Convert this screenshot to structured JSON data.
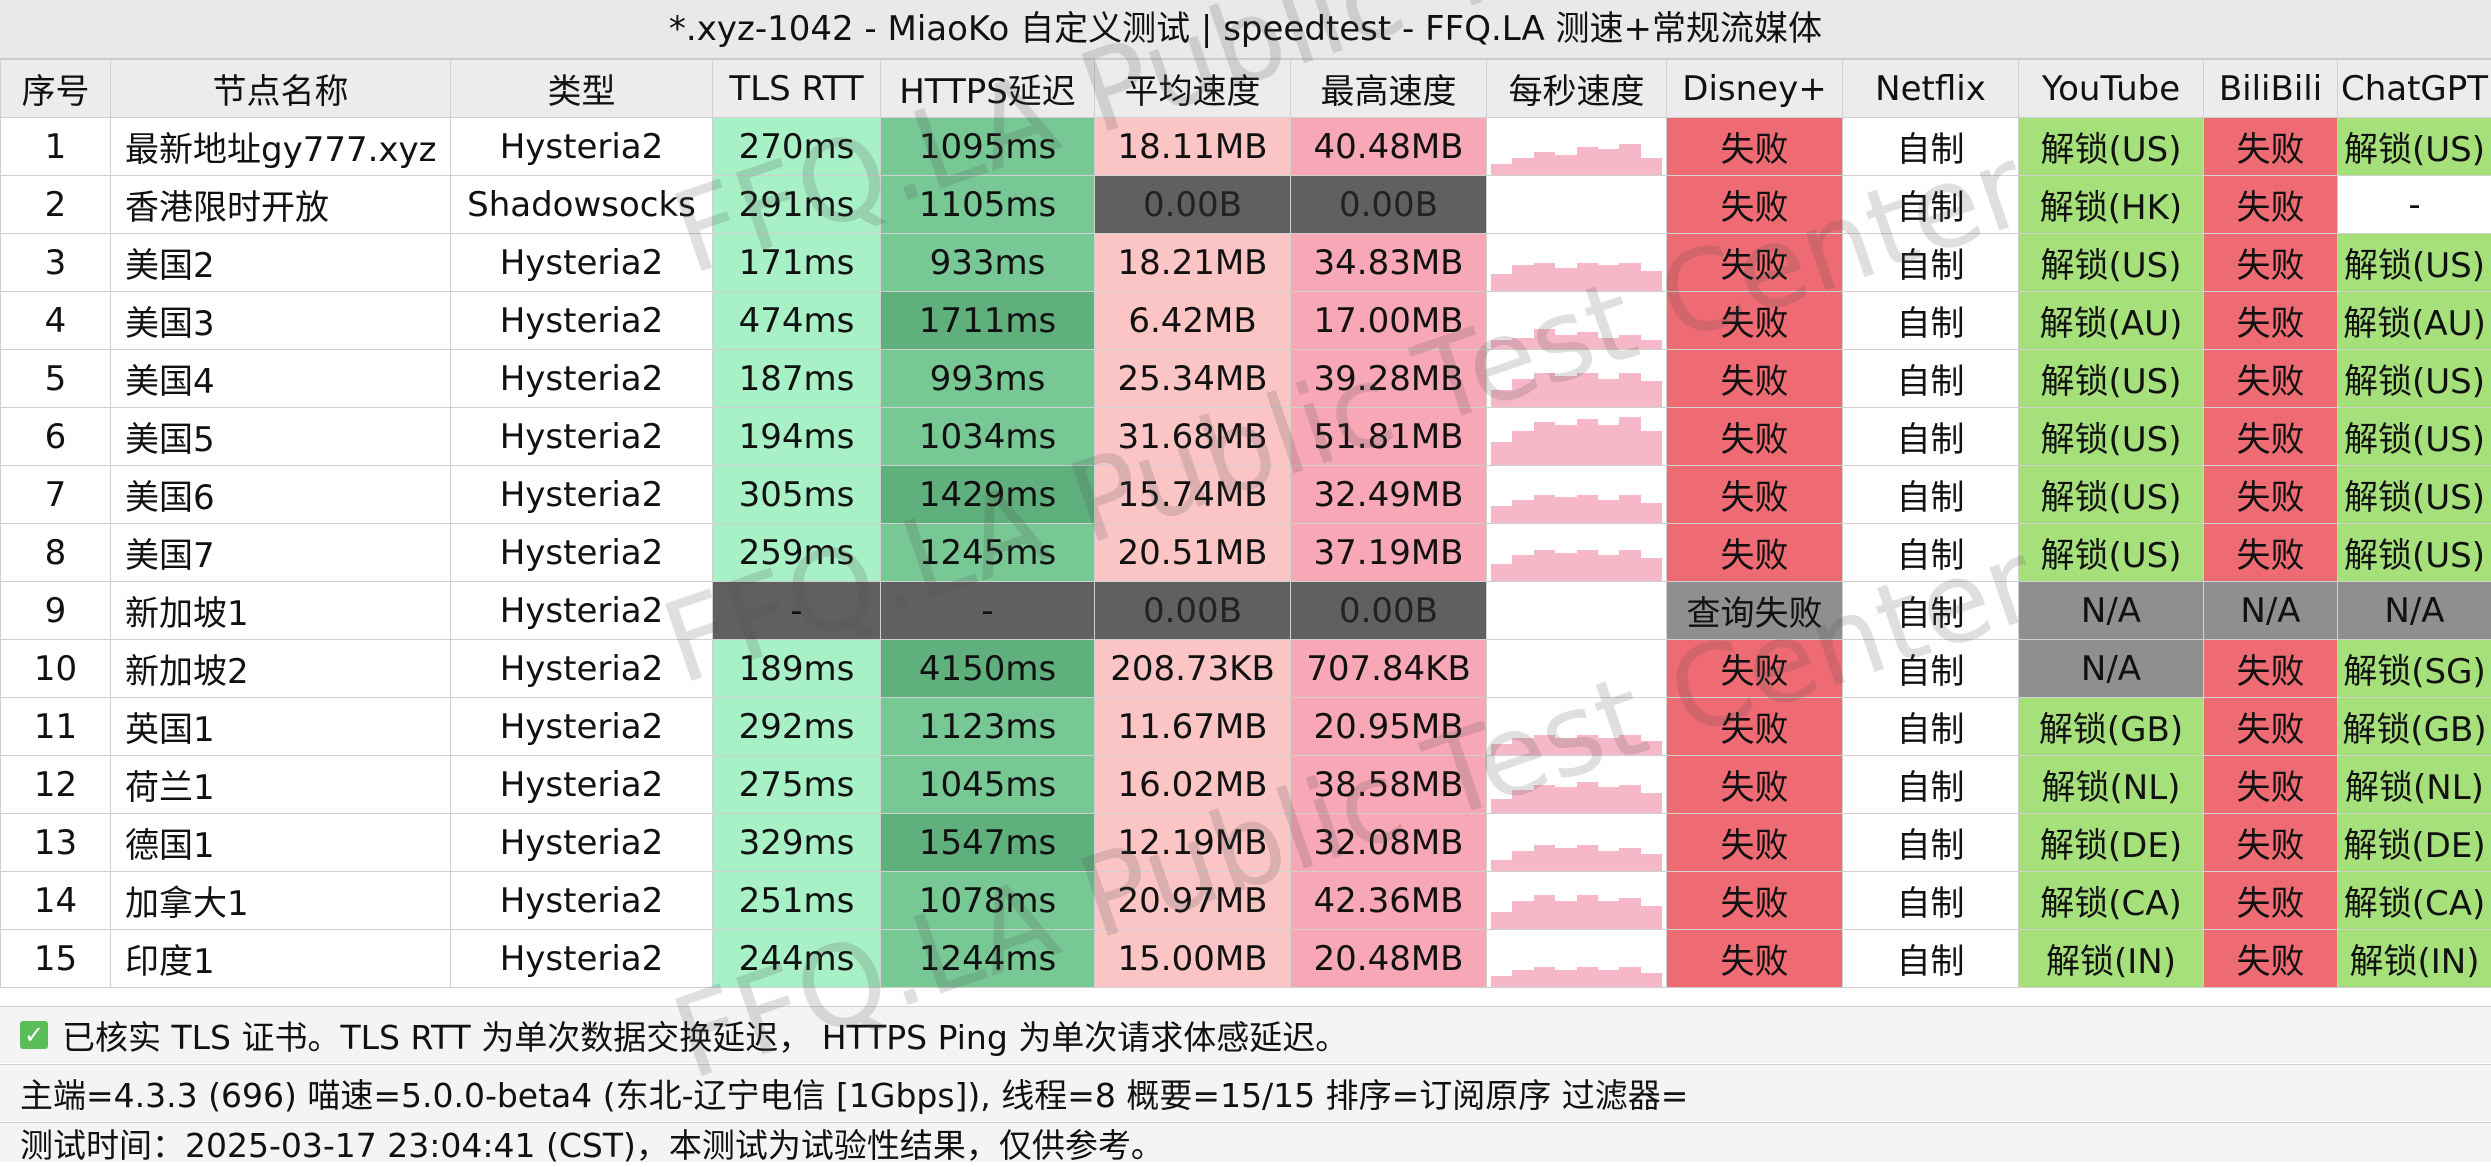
{
  "title": "*.xyz-1042 - MiaoKo 自定义测试 | speedtest - FFQ.LA 测速+常规流媒体",
  "columns": [
    "序号",
    "节点名称",
    "类型",
    "TLS RTT",
    "HTTPS延迟",
    "平均速度",
    "最高速度",
    "每秒速度",
    "Disney+",
    "Netflix",
    "YouTube",
    "BiliBili",
    "ChatGPT"
  ],
  "rows": [
    {
      "id": "1",
      "name": "最新地址gy777.xyz",
      "type": "Hysteria2",
      "tls": "270ms",
      "https": "1095ms",
      "avg": "18.11MB",
      "max": "40.48MB",
      "spark": [
        0.2,
        0.3,
        0.4,
        0.35,
        0.5,
        0.45,
        0.55,
        0.3
      ],
      "disney": "失败",
      "netflix": "自制",
      "youtube": "解锁(US)",
      "bili": "失败",
      "chatgpt": "解锁(US)"
    },
    {
      "id": "2",
      "name": "香港限时开放",
      "type": "Shadowsocks",
      "tls": "291ms",
      "https": "1105ms",
      "avg": "0.00B",
      "max": "0.00B",
      "spark": [],
      "disney": "失败",
      "netflix": "自制",
      "youtube": "解锁(HK)",
      "bili": "失败",
      "chatgpt": "-"
    },
    {
      "id": "3",
      "name": "美国2",
      "type": "Hysteria2",
      "tls": "171ms",
      "https": "933ms",
      "avg": "18.21MB",
      "max": "34.83MB",
      "spark": [
        0.3,
        0.45,
        0.5,
        0.4,
        0.5,
        0.45,
        0.5,
        0.35
      ],
      "disney": "失败",
      "netflix": "自制",
      "youtube": "解锁(US)",
      "bili": "失败",
      "chatgpt": "解锁(US)"
    },
    {
      "id": "4",
      "name": "美国3",
      "type": "Hysteria2",
      "tls": "474ms",
      "https": "1711ms",
      "avg": "6.42MB",
      "max": "17.00MB",
      "spark": [
        0.15,
        0.2,
        0.35,
        0.25,
        0.3,
        0.2,
        0.25,
        0.15
      ],
      "disney": "失败",
      "netflix": "自制",
      "youtube": "解锁(AU)",
      "bili": "失败",
      "chatgpt": "解锁(AU)"
    },
    {
      "id": "5",
      "name": "美国4",
      "type": "Hysteria2",
      "tls": "187ms",
      "https": "993ms",
      "avg": "25.34MB",
      "max": "39.28MB",
      "spark": [
        0.3,
        0.5,
        0.6,
        0.55,
        0.6,
        0.5,
        0.6,
        0.45
      ],
      "disney": "失败",
      "netflix": "自制",
      "youtube": "解锁(US)",
      "bili": "失败",
      "chatgpt": "解锁(US)"
    },
    {
      "id": "6",
      "name": "美国5",
      "type": "Hysteria2",
      "tls": "194ms",
      "https": "1034ms",
      "avg": "31.68MB",
      "max": "51.81MB",
      "spark": [
        0.4,
        0.6,
        0.75,
        0.7,
        0.8,
        0.7,
        0.85,
        0.6
      ],
      "disney": "失败",
      "netflix": "自制",
      "youtube": "解锁(US)",
      "bili": "失败",
      "chatgpt": "解锁(US)"
    },
    {
      "id": "7",
      "name": "美国6",
      "type": "Hysteria2",
      "tls": "305ms",
      "https": "1429ms",
      "avg": "15.74MB",
      "max": "32.49MB",
      "spark": [
        0.3,
        0.4,
        0.5,
        0.45,
        0.5,
        0.4,
        0.5,
        0.35
      ],
      "disney": "失败",
      "netflix": "自制",
      "youtube": "解锁(US)",
      "bili": "失败",
      "chatgpt": "解锁(US)"
    },
    {
      "id": "8",
      "name": "美国7",
      "type": "Hysteria2",
      "tls": "259ms",
      "https": "1245ms",
      "avg": "20.51MB",
      "max": "37.19MB",
      "spark": [
        0.3,
        0.45,
        0.55,
        0.5,
        0.55,
        0.45,
        0.55,
        0.4
      ],
      "disney": "失败",
      "netflix": "自制",
      "youtube": "解锁(US)",
      "bili": "失败",
      "chatgpt": "解锁(US)"
    },
    {
      "id": "9",
      "name": "新加坡1",
      "type": "Hysteria2",
      "tls": "-",
      "https": "-",
      "avg": "0.00B",
      "max": "0.00B",
      "spark": [],
      "disney": "查询失败",
      "netflix": "自制",
      "youtube": "N/A",
      "bili": "N/A",
      "chatgpt": "N/A"
    },
    {
      "id": "10",
      "name": "新加坡2",
      "type": "Hysteria2",
      "tls": "189ms",
      "https": "4150ms",
      "avg": "208.73KB",
      "max": "707.84KB",
      "spark": [],
      "disney": "失败",
      "netflix": "自制",
      "youtube": "N/A",
      "bili": "失败",
      "chatgpt": "解锁(SG)"
    },
    {
      "id": "11",
      "name": "英国1",
      "type": "Hysteria2",
      "tls": "292ms",
      "https": "1123ms",
      "avg": "11.67MB",
      "max": "20.95MB",
      "spark": [
        0.2,
        0.3,
        0.35,
        0.3,
        0.35,
        0.3,
        0.35,
        0.25
      ],
      "disney": "失败",
      "netflix": "自制",
      "youtube": "解锁(GB)",
      "bili": "失败",
      "chatgpt": "解锁(GB)"
    },
    {
      "id": "12",
      "name": "荷兰1",
      "type": "Hysteria2",
      "tls": "275ms",
      "https": "1045ms",
      "avg": "16.02MB",
      "max": "38.58MB",
      "spark": [
        0.25,
        0.4,
        0.5,
        0.45,
        0.55,
        0.45,
        0.5,
        0.35
      ],
      "disney": "失败",
      "netflix": "自制",
      "youtube": "解锁(NL)",
      "bili": "失败",
      "chatgpt": "解锁(NL)"
    },
    {
      "id": "13",
      "name": "德国1",
      "type": "Hysteria2",
      "tls": "329ms",
      "https": "1547ms",
      "avg": "12.19MB",
      "max": "32.08MB",
      "spark": [
        0.2,
        0.35,
        0.45,
        0.4,
        0.45,
        0.35,
        0.4,
        0.3
      ],
      "disney": "失败",
      "netflix": "自制",
      "youtube": "解锁(DE)",
      "bili": "失败",
      "chatgpt": "解锁(DE)"
    },
    {
      "id": "14",
      "name": "加拿大1",
      "type": "Hysteria2",
      "tls": "251ms",
      "https": "1078ms",
      "avg": "20.97MB",
      "max": "42.36MB",
      "spark": [
        0.3,
        0.5,
        0.6,
        0.5,
        0.6,
        0.5,
        0.55,
        0.4
      ],
      "disney": "失败",
      "netflix": "自制",
      "youtube": "解锁(CA)",
      "bili": "失败",
      "chatgpt": "解锁(CA)"
    },
    {
      "id": "15",
      "name": "印度1",
      "type": "Hysteria2",
      "tls": "244ms",
      "https": "1244ms",
      "avg": "15.00MB",
      "max": "20.48MB",
      "spark": [
        0.2,
        0.3,
        0.35,
        0.3,
        0.35,
        0.3,
        0.35,
        0.25
      ],
      "disney": "失败",
      "netflix": "自制",
      "youtube": "解锁(IN)",
      "bili": "失败",
      "chatgpt": "解锁(IN)"
    }
  ],
  "footer": {
    "note": "已核实 TLS 证书。TLS RTT 为单次数据交换延迟， HTTPS Ping 为单次请求体感延迟。",
    "info": "主端=4.3.3 (696) 喵速=5.0.0-beta4 (东北-辽宁电信 [1Gbps]), 线程=8 概要=15/15 排序=订阅原序 过滤器=",
    "time": "测试时间：2025-03-17 23:04:41 (CST)，本测试为试验性结果，仅供参考。"
  },
  "watermark": "FFQ.LA Public Test Center",
  "colors": {
    "tls_bg": "#a8f0c6",
    "https_bg": "#77c895",
    "https_dark_bg": "#5fb07c",
    "avg_bg": "#fbc5c5",
    "max_bg": "#f7a7b6",
    "gray_bg": "#606060",
    "fail_bg": "#ef6b73",
    "unlock_bg": "#a6e07a",
    "na_bg": "#8f8f8f"
  }
}
